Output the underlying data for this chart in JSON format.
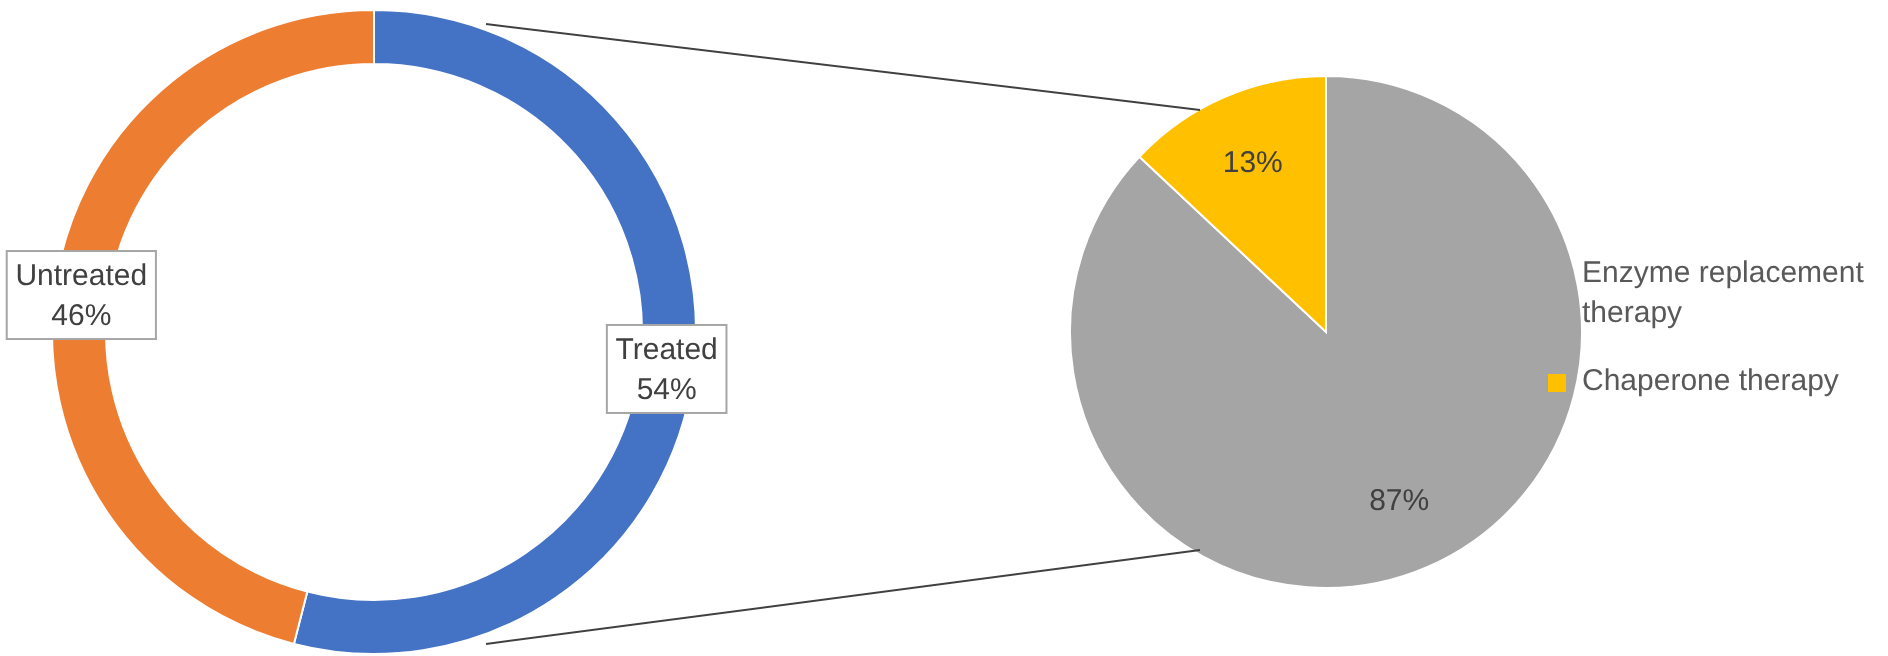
{
  "chart_data": [
    {
      "type": "donut",
      "categories": [
        "Treated",
        "Untreated"
      ],
      "values": [
        54,
        46
      ],
      "colors": [
        "#4472c4",
        "#ed7d31"
      ],
      "value_labels": [
        "54%",
        "46%"
      ]
    },
    {
      "type": "pie",
      "categories": [
        "Enzyme replacement therapy",
        "Chaperone therapy"
      ],
      "values": [
        87,
        13
      ],
      "colors": [
        "#a5a5a5",
        "#ffc000"
      ],
      "value_labels": [
        "87%",
        "13%"
      ],
      "legend": "right"
    }
  ]
}
